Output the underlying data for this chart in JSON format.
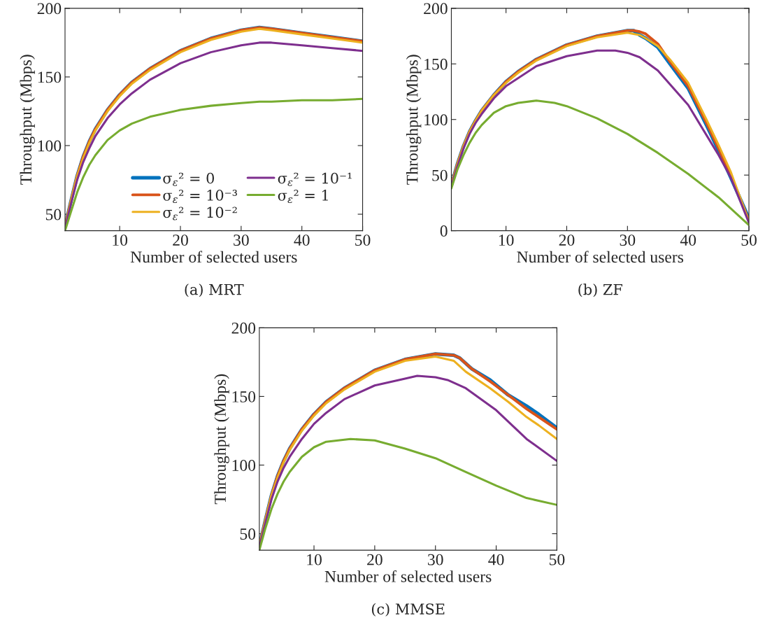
{
  "chart_data": [
    {
      "type": "line",
      "xlabel": "Number of selected users",
      "ylabel": "Throughput (Mbps)",
      "xlim": [
        1,
        50
      ],
      "xticks": [
        10,
        20,
        30,
        40,
        50
      ],
      "ylim": [
        38,
        200
      ],
      "yticks": [
        50,
        100,
        150,
        200
      ],
      "grid": false,
      "legend": "bottom right",
      "annotations": [
        "(a) MRT"
      ],
      "series": [
        {
          "name": "σ$_{ε}$² = 0",
          "color": "#0072bd",
          "x": [
            1,
            2,
            3,
            4,
            5,
            6,
            8,
            10,
            12,
            15,
            20,
            25,
            30,
            33,
            35,
            40,
            45,
            50
          ],
          "values": [
            41,
            60,
            78,
            92,
            103,
            112,
            126,
            137,
            146,
            156,
            169,
            178,
            184,
            186,
            185,
            182,
            179,
            176
          ]
        },
        {
          "name": "σ$_{ε}$² = 10⁻³",
          "color": "#d95319",
          "x": [
            1,
            2,
            3,
            4,
            5,
            6,
            8,
            10,
            12,
            15,
            20,
            25,
            30,
            33,
            35,
            40,
            45,
            50
          ],
          "values": [
            41,
            60,
            78,
            92,
            103,
            112,
            126,
            137,
            146,
            156,
            169,
            178,
            184,
            186,
            185,
            182,
            179,
            176
          ]
        },
        {
          "name": "σ$_{ε}$² = 10⁻²",
          "color": "#edb120",
          "x": [
            1,
            2,
            3,
            4,
            5,
            6,
            8,
            10,
            12,
            15,
            20,
            25,
            30,
            33,
            35,
            40,
            45,
            50
          ],
          "values": [
            41,
            60,
            78,
            91,
            102,
            111,
            125,
            136,
            145,
            155,
            168,
            177,
            183,
            185,
            184,
            181,
            178,
            175
          ]
        },
        {
          "name": "σ$_{ε}$² = 10⁻¹",
          "color": "#7e2f8e",
          "x": [
            1,
            2,
            3,
            4,
            5,
            6,
            8,
            10,
            12,
            15,
            20,
            25,
            30,
            33,
            35,
            40,
            45,
            50
          ],
          "values": [
            40,
            58,
            75,
            88,
            98,
            107,
            120,
            130,
            138,
            148,
            160,
            168,
            173,
            175,
            175,
            173,
            171,
            169
          ]
        },
        {
          "name": "σ$_{ε}$² = 1",
          "color": "#77ac30",
          "x": [
            1,
            2,
            3,
            4,
            5,
            6,
            8,
            10,
            12,
            15,
            20,
            25,
            30,
            33,
            35,
            40,
            45,
            50
          ],
          "values": [
            38,
            52,
            66,
            77,
            86,
            93,
            104,
            111,
            116,
            121,
            126,
            129,
            131,
            132,
            132,
            133,
            133,
            134
          ]
        }
      ]
    },
    {
      "type": "line",
      "xlabel": "Number of selected users",
      "ylabel": "Throughput (Mbps)",
      "xlim": [
        1,
        50
      ],
      "xticks": [
        10,
        20,
        30,
        40,
        50
      ],
      "ylim": [
        0,
        200
      ],
      "yticks": [
        0,
        50,
        100,
        150,
        200
      ],
      "grid": false,
      "annotations": [
        "(b) ZF"
      ],
      "series": [
        {
          "color": "#0072bd",
          "x": [
            1,
            2,
            3,
            4,
            5,
            6,
            8,
            10,
            12,
            15,
            20,
            25,
            30,
            31,
            32,
            33,
            35,
            37,
            40,
            43,
            45,
            47,
            50
          ],
          "values": [
            41,
            60,
            76,
            89,
            99,
            108,
            122,
            134,
            143,
            154,
            167,
            175,
            180,
            180,
            176,
            173,
            165,
            150,
            128,
            95,
            72,
            48,
            11
          ]
        },
        {
          "color": "#d95319",
          "x": [
            1,
            2,
            3,
            4,
            5,
            6,
            8,
            10,
            12,
            15,
            20,
            25,
            30,
            31,
            32,
            33,
            35,
            37,
            40,
            43,
            45,
            47,
            50
          ],
          "values": [
            41,
            60,
            76,
            89,
            99,
            108,
            122,
            134,
            143,
            154,
            167,
            175,
            180,
            180,
            179,
            177,
            168,
            152,
            130,
            97,
            74,
            50,
            9
          ]
        },
        {
          "color": "#edb120",
          "x": [
            1,
            2,
            3,
            4,
            5,
            6,
            8,
            10,
            12,
            15,
            20,
            25,
            30,
            31,
            32,
            33,
            35,
            37,
            40,
            43,
            45,
            47,
            50
          ],
          "values": [
            41,
            60,
            76,
            89,
            99,
            108,
            122,
            133,
            142,
            153,
            166,
            174,
            178,
            177,
            176,
            173,
            166,
            154,
            133,
            100,
            77,
            53,
            8
          ]
        },
        {
          "color": "#7e2f8e",
          "x": [
            1,
            2,
            3,
            4,
            5,
            6,
            8,
            10,
            15,
            20,
            25,
            28,
            30,
            32,
            35,
            40,
            45,
            47,
            50
          ],
          "values": [
            40,
            58,
            74,
            87,
            97,
            105,
            119,
            130,
            148,
            157,
            162,
            162,
            160,
            156,
            144,
            113,
            68,
            48,
            7
          ]
        },
        {
          "color": "#77ac30",
          "x": [
            1,
            2,
            3,
            4,
            5,
            6,
            8,
            10,
            12,
            15,
            18,
            20,
            25,
            30,
            35,
            40,
            45,
            50
          ],
          "values": [
            38,
            55,
            68,
            79,
            88,
            95,
            106,
            112,
            115,
            117,
            115,
            112,
            101,
            87,
            70,
            51,
            30,
            5
          ]
        }
      ]
    },
    {
      "type": "line",
      "xlabel": "Number of selected users",
      "ylabel": "Throughput (Mbps)",
      "xlim": [
        1,
        50
      ],
      "xticks": [
        10,
        20,
        30,
        40,
        50
      ],
      "ylim": [
        38,
        200
      ],
      "yticks": [
        50,
        100,
        150,
        200
      ],
      "grid": false,
      "annotations": [
        "(c) MMSE"
      ],
      "series": [
        {
          "color": "#0072bd",
          "x": [
            1,
            2,
            3,
            4,
            5,
            6,
            8,
            10,
            12,
            15,
            20,
            25,
            30,
            33,
            34,
            36,
            39,
            42,
            45,
            47,
            50
          ],
          "values": [
            41,
            60,
            78,
            92,
            103,
            112,
            126,
            137,
            146,
            156,
            169,
            177,
            181,
            180,
            178,
            170,
            162,
            151,
            143,
            137,
            127
          ]
        },
        {
          "color": "#d95319",
          "x": [
            1,
            2,
            3,
            4,
            5,
            6,
            8,
            10,
            12,
            15,
            20,
            25,
            30,
            33,
            34,
            36,
            39,
            42,
            45,
            47,
            50
          ],
          "values": [
            41,
            60,
            78,
            92,
            103,
            112,
            126,
            137,
            146,
            156,
            169,
            177,
            181,
            180,
            178,
            170,
            161,
            151,
            141,
            135,
            126
          ]
        },
        {
          "color": "#edb120",
          "x": [
            1,
            2,
            3,
            4,
            5,
            6,
            8,
            10,
            12,
            15,
            20,
            25,
            30,
            33,
            35,
            39,
            42,
            45,
            47,
            50
          ],
          "values": [
            41,
            60,
            78,
            91,
            102,
            111,
            125,
            136,
            145,
            155,
            168,
            176,
            179,
            176,
            168,
            156,
            146,
            135,
            129,
            119
          ]
        },
        {
          "color": "#7e2f8e",
          "x": [
            1,
            2,
            3,
            4,
            5,
            6,
            8,
            10,
            12,
            15,
            20,
            25,
            27,
            30,
            32,
            35,
            40,
            45,
            50
          ],
          "values": [
            40,
            58,
            75,
            88,
            98,
            106,
            119,
            130,
            138,
            148,
            158,
            163,
            165,
            164,
            162,
            156,
            140,
            119,
            103
          ]
        },
        {
          "color": "#77ac30",
          "x": [
            1,
            2,
            3,
            4,
            5,
            6,
            8,
            10,
            12,
            16,
            20,
            25,
            30,
            35,
            40,
            45,
            50
          ],
          "values": [
            38,
            54,
            68,
            79,
            88,
            95,
            106,
            113,
            117,
            119,
            118,
            112,
            105,
            95,
            85,
            76,
            71
          ]
        }
      ]
    }
  ]
}
